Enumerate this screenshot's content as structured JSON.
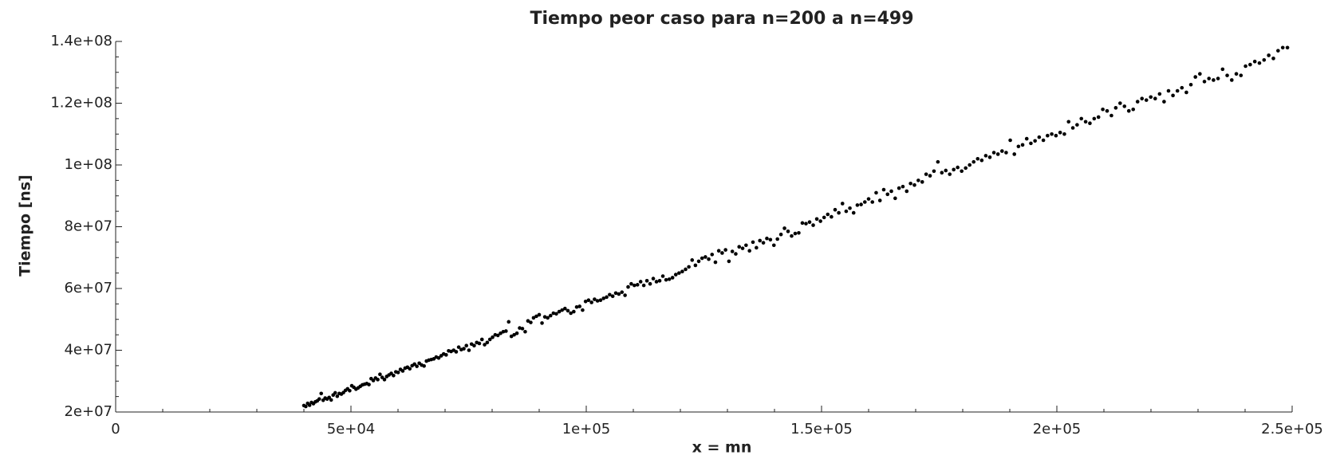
{
  "chart_data": {
    "type": "scatter",
    "title": "Tiempo peor caso para n=200 a n=499",
    "xlabel": "x = mn",
    "ylabel": "Tiempo [ns]",
    "color": "#000000",
    "xlim": [
      0,
      250000
    ],
    "ylim": [
      20000000,
      140000000
    ],
    "xticks": [
      0,
      {
        "value": 50000,
        "label": "5e+04"
      },
      {
        "value": 100000,
        "label": "1e+05"
      },
      {
        "value": 150000,
        "label": "1.5e+05"
      },
      {
        "value": 200000,
        "label": "2e+05"
      },
      {
        "value": 250000,
        "label": "2.5e+05"
      }
    ],
    "yticks": [
      {
        "value": 20000000,
        "label": "2e+07"
      },
      {
        "value": 40000000,
        "label": "4e+07"
      },
      {
        "value": 60000000,
        "label": "6e+07"
      },
      {
        "value": 80000000,
        "label": "8e+07"
      },
      {
        "value": 100000000,
        "label": "1e+08"
      },
      {
        "value": 120000000,
        "label": "1.2e+08"
      },
      {
        "value": 140000000,
        "label": "1.4e+08"
      }
    ],
    "xminorticks": [
      10000,
      20000,
      30000,
      40000,
      60000,
      70000,
      80000,
      90000,
      110000,
      120000,
      130000,
      140000,
      160000,
      170000,
      180000,
      190000,
      210000,
      220000,
      230000,
      240000
    ],
    "yminorticks": [
      25000000,
      30000000,
      35000000,
      45000000,
      50000000,
      55000000,
      65000000,
      70000000,
      75000000,
      85000000,
      90000000,
      95000000,
      105000000,
      110000000,
      115000000,
      125000000,
      130000000,
      135000000
    ],
    "x": [
      40000,
      40401,
      40804,
      41209,
      41616,
      42025,
      42436,
      42849,
      43264,
      43681,
      44100,
      44521,
      44944,
      45369,
      45796,
      46225,
      46656,
      47089,
      47524,
      47961,
      48400,
      48841,
      49284,
      49729,
      50176,
      50625,
      51076,
      51529,
      51984,
      52441,
      52900,
      53361,
      53824,
      54289,
      54756,
      55225,
      55696,
      56169,
      56644,
      57121,
      57600,
      58081,
      58564,
      59049,
      59536,
      60025,
      60516,
      61009,
      61504,
      62001,
      62500,
      63001,
      63504,
      64009,
      64516,
      65025,
      65536,
      66049,
      66564,
      67081,
      67600,
      68121,
      68644,
      69169,
      69696,
      70225,
      70756,
      71289,
      71824,
      72361,
      72900,
      73441,
      73984,
      74529,
      75076,
      75625,
      76176,
      76729,
      77284,
      77841,
      78400,
      78961,
      79524,
      80089,
      80656,
      81225,
      81796,
      82369,
      82944,
      83521,
      84100,
      84681,
      85264,
      85849,
      86436,
      87025,
      87616,
      88209,
      88804,
      89401,
      90000,
      90601,
      91204,
      91809,
      92416,
      93025,
      93636,
      94249,
      94864,
      95481,
      96100,
      96721,
      97344,
      97969,
      98596,
      99225,
      99856,
      100489,
      101124,
      101761,
      102400,
      103041,
      103684,
      104329,
      104976,
      105625,
      106276,
      106929,
      107584,
      108241,
      108900,
      109561,
      110224,
      110889,
      111556,
      112225,
      112896,
      113569,
      114244,
      114921,
      115600,
      116281,
      116964,
      117649,
      118336,
      119025,
      119716,
      120409,
      121104,
      121801,
      122500,
      123201,
      123904,
      124609,
      125316,
      126025,
      126736,
      127449,
      128164,
      128881,
      129600,
      130321,
      131044,
      131769,
      132496,
      133225,
      133956,
      134689,
      135424,
      136161,
      136900,
      137641,
      138384,
      139129,
      139876,
      140625,
      141376,
      142129,
      142884,
      143641,
      144400,
      145161,
      145924,
      146689,
      147456,
      148225,
      148996,
      149769,
      150544,
      151321,
      152100,
      152881,
      153664,
      154449,
      155236,
      156025,
      156816,
      157609,
      158404,
      159201,
      160000,
      160801,
      161604,
      162409,
      163216,
      164025,
      164836,
      165649,
      166464,
      167281,
      168100,
      168921,
      169744,
      170569,
      171396,
      172225,
      173056,
      173889,
      174724,
      175561,
      176400,
      177241,
      178084,
      178929,
      179776,
      180625,
      181476,
      182329,
      183184,
      184041,
      184900,
      185761,
      186624,
      187489,
      188356,
      189225,
      190096,
      190969,
      191844,
      192721,
      193600,
      194481,
      195364,
      196249,
      197136,
      198025,
      198916,
      199809,
      200704,
      201601,
      202500,
      203401,
      204304,
      205209,
      206116,
      207025,
      207936,
      208849,
      209764,
      210681,
      211600,
      212521,
      213444,
      214369,
      215296,
      216225,
      217156,
      218089,
      219024,
      219961,
      220900,
      221841,
      222784,
      223729,
      224676,
      225625,
      226576,
      227529,
      228484,
      229441,
      230400,
      231361,
      232324,
      233289,
      234256,
      235225,
      236196,
      237169,
      238144,
      239121,
      240100,
      241081,
      242064,
      243049,
      244036,
      245025,
      246016,
      247009,
      248004,
      249001
    ],
    "values": [
      22100000.0,
      21800000.0,
      22800000.0,
      22200000.0,
      23100000.0,
      22700000.0,
      23300000.0,
      23600000.0,
      24200000.0,
      26000000.0,
      23800000.0,
      24500000.0,
      24200000.0,
      24700000.0,
      23900000.0,
      25500000.0,
      26200000.0,
      25100000.0,
      26000000.0,
      25800000.0,
      26300000.0,
      27000000.0,
      27500000.0,
      26900000.0,
      28500000.0,
      28000000.0,
      27400000.0,
      27800000.0,
      28300000.0,
      28800000.0,
      29000000.0,
      29200000.0,
      28900000.0,
      30800000.0,
      30200000.0,
      31000000.0,
      30500000.0,
      32200000.0,
      31200000.0,
      30500000.0,
      31500000.0,
      32000000.0,
      32500000.0,
      31800000.0,
      33000000.0,
      32800000.0,
      33800000.0,
      33300000.0,
      34200000.0,
      34500000.0,
      34000000.0,
      35000000.0,
      35500000.0,
      34800000.0,
      35800000.0,
      35200000.0,
      34900000.0,
      36500000.0,
      36800000.0,
      37000000.0,
      37200000.0,
      37800000.0,
      37500000.0,
      38200000.0,
      38800000.0,
      38500000.0,
      39800000.0,
      39600000.0,
      40000000.0,
      39500000.0,
      41000000.0,
      40200000.0,
      40500000.0,
      41500000.0,
      40000000.0,
      42000000.0,
      41500000.0,
      42500000.0,
      42200000.0,
      43500000.0,
      41800000.0,
      42500000.0,
      43500000.0,
      44200000.0,
      45000000.0,
      44800000.0,
      45500000.0,
      46000000.0,
      46200000.0,
      49200000.0,
      44500000.0,
      45000000.0,
      45500000.0,
      47200000.0,
      47000000.0,
      46000000.0,
      49500000.0,
      49000000.0,
      50500000.0,
      51000000.0,
      51500000.0,
      48800000.0,
      50800000.0,
      50500000.0,
      51200000.0,
      52000000.0,
      51800000.0,
      52500000.0,
      53000000.0,
      53500000.0,
      52800000.0,
      52000000.0,
      52500000.0,
      54000000.0,
      54200000.0,
      53000000.0,
      55800000.0,
      56200000.0,
      55500000.0,
      56500000.0,
      56000000.0,
      56200000.0,
      56800000.0,
      57200000.0,
      58000000.0,
      57500000.0,
      58500000.0,
      58200000.0,
      58800000.0,
      57800000.0,
      60500000.0,
      61500000.0,
      61000000.0,
      61200000.0,
      62200000.0,
      61000000.0,
      62500000.0,
      61500000.0,
      63200000.0,
      62200000.0,
      62500000.0,
      64000000.0,
      62800000.0,
      63000000.0,
      63500000.0,
      64500000.0,
      65000000.0,
      65500000.0,
      66200000.0,
      67000000.0,
      69200000.0,
      67500000.0,
      68800000.0,
      69800000.0,
      70200000.0,
      69500000.0,
      71000000.0,
      68500000.0,
      72200000.0,
      71500000.0,
      72500000.0,
      68800000.0,
      72000000.0,
      71200000.0,
      73500000.0,
      73000000.0,
      74000000.0,
      72200000.0,
      75000000.0,
      73200000.0,
      75500000.0,
      74800000.0,
      76200000.0,
      75800000.0,
      74000000.0,
      76000000.0,
      77500000.0,
      79500000.0,
      78500000.0,
      77000000.0,
      77800000.0,
      78000000.0,
      81200000.0,
      81000000.0,
      81500000.0,
      80500000.0,
      82500000.0,
      81800000.0,
      83000000.0,
      84000000.0,
      83200000.0,
      85500000.0,
      84500000.0,
      87500000.0,
      85000000.0,
      86000000.0,
      84500000.0,
      87000000.0,
      87200000.0,
      88000000.0,
      89000000.0,
      88000000.0,
      91000000.0,
      88500000.0,
      92000000.0,
      90500000.0,
      91500000.0,
      89200000.0,
      92500000.0,
      93000000.0,
      91500000.0,
      94000000.0,
      93500000.0,
      95000000.0,
      94500000.0,
      97000000.0,
      96500000.0,
      98000000.0,
      101000000.0,
      97500000.0,
      98200000.0,
      97000000.0,
      98500000.0,
      99200000.0,
      98000000.0,
      99000000.0,
      100000000.0,
      101000000.0,
      102000000.0,
      101500000.0,
      103000000.0,
      102500000.0,
      104000000.0,
      103500000.0,
      104500000.0,
      104000000.0,
      108000000.0,
      103500000.0,
      106000000.0,
      106500000.0,
      108500000.0,
      107000000.0,
      107800000.0,
      109000000.0,
      108000000.0,
      109500000.0,
      110000000.0,
      109500000.0,
      110500000.0,
      110000000.0,
      114000000.0,
      112000000.0,
      113000000.0,
      115000000.0,
      114000000.0,
      113500000.0,
      115000000.0,
      115500000.0,
      118000000.0,
      117500000.0,
      116000000.0,
      118500000.0,
      120000000.0,
      119000000.0,
      117500000.0,
      118000000.0,
      120500000.0,
      121500000.0,
      121000000.0,
      122000000.0,
      121500000.0,
      123000000.0,
      120500000.0,
      124000000.0,
      122500000.0,
      124000000.0,
      125000000.0,
      123500000.0,
      126000000.0,
      128500000.0,
      129500000.0,
      127000000.0,
      128000000.0,
      127500000.0,
      128000000.0,
      131000000.0,
      129000000.0,
      127500000.0,
      129500000.0,
      129000000.0,
      132000000.0,
      132500000.0,
      133500000.0,
      133000000.0,
      134000000.0,
      135500000.0,
      134500000.0,
      137000000.0,
      138000000.0,
      138000000.0
    ]
  }
}
